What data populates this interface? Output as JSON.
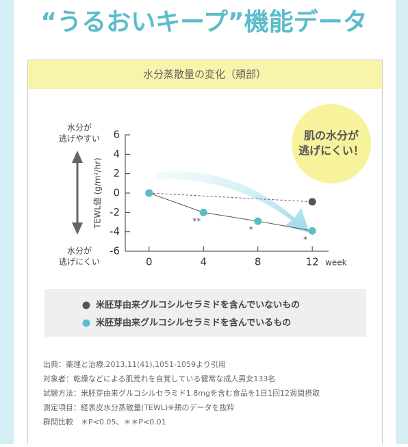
{
  "title": "“うるおいキープ”機能データ",
  "panel_title": "水分蒸散量の変化（頬部）",
  "chart_data": {
    "type": "line",
    "y_label": "TEWL値 (g/m²/hr)",
    "y_top_label": [
      "水分が",
      "逃げやすい"
    ],
    "y_bottom_label": [
      "水分が",
      "逃げにくい"
    ],
    "x_unit": "week",
    "callout": [
      "肌の水分が",
      "逃げにくい！"
    ],
    "xlim": [
      -1.75,
      13.2
    ],
    "xticks": [
      0,
      4,
      8,
      12
    ],
    "ylim": [
      -6,
      6
    ],
    "yticks": [
      6,
      4,
      2,
      0,
      -2,
      -4,
      -6
    ],
    "series": [
      {
        "name": "米胚芽由来グルコシルセラミドを含んでいないもの",
        "color": "#555555",
        "dashed": true,
        "x": [
          0,
          12
        ],
        "values": [
          0,
          -0.9
        ]
      },
      {
        "name": "米胚芽由来グルコシルセラミドを含んでいるもの",
        "color": "#5bbccb",
        "dashed": false,
        "x": [
          0,
          4,
          8,
          12
        ],
        "values": [
          0,
          -2.0,
          -2.9,
          -3.9
        ]
      }
    ],
    "annotations": [
      {
        "x": 4,
        "text": "**"
      },
      {
        "x": 8,
        "text": "*"
      },
      {
        "x": 12,
        "text": "*"
      }
    ]
  },
  "notes": [
    "出典：薬理と治療.2013,11(41),1051-1059より引用",
    "対象者：乾燥などによる肌荒れを自覚している健常な成人男女133名",
    "試験方法：米胚芽由来グルコシルセラミド1.8mgを含む食品を1日1回12週間摂取",
    "測定項目：経表皮水分蒸散量(TEWL)※頬のデータを抜粋",
    "群間比較　＊P<0.05、＊＊P<0.01"
  ]
}
